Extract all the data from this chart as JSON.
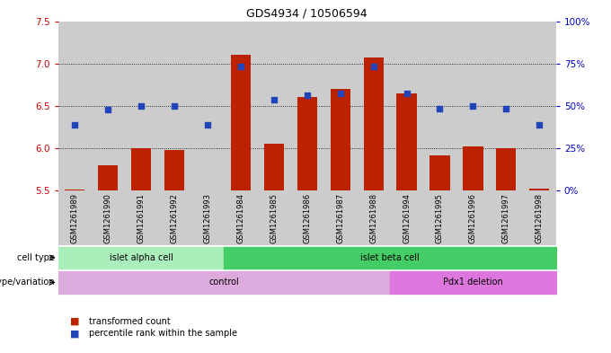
{
  "title": "GDS4934 / 10506594",
  "samples": [
    "GSM1261989",
    "GSM1261990",
    "GSM1261991",
    "GSM1261992",
    "GSM1261993",
    "GSM1261984",
    "GSM1261985",
    "GSM1261986",
    "GSM1261987",
    "GSM1261988",
    "GSM1261994",
    "GSM1261995",
    "GSM1261996",
    "GSM1261997",
    "GSM1261998"
  ],
  "red_values": [
    5.51,
    5.8,
    6.0,
    5.98,
    5.5,
    7.1,
    6.05,
    6.6,
    6.7,
    7.07,
    6.65,
    5.92,
    6.02,
    6.0,
    5.52
  ],
  "blue_values": [
    6.28,
    6.46,
    6.5,
    6.5,
    6.28,
    6.97,
    6.57,
    6.63,
    6.65,
    6.97,
    6.65,
    6.47,
    6.5,
    6.47,
    6.28
  ],
  "y_min": 5.5,
  "y_max": 7.5,
  "y_ticks": [
    5.5,
    6.0,
    6.5,
    7.0,
    7.5
  ],
  "right_y_ticks": [
    0,
    25,
    50,
    75,
    100
  ],
  "right_y_labels": [
    "0%",
    "25%",
    "50%",
    "75%",
    "100%"
  ],
  "bar_color": "#bb2200",
  "dot_color": "#2244bb",
  "bar_bottom": 5.5,
  "cell_type_groups": [
    {
      "label": "islet alpha cell",
      "start": 0,
      "end": 4,
      "color": "#aaeebb"
    },
    {
      "label": "islet beta cell",
      "start": 5,
      "end": 14,
      "color": "#44cc66"
    }
  ],
  "genotype_groups": [
    {
      "label": "control",
      "start": 0,
      "end": 9,
      "color": "#ddaadd"
    },
    {
      "label": "Pdx1 deletion",
      "start": 10,
      "end": 14,
      "color": "#dd77dd"
    }
  ],
  "legend_items": [
    {
      "label": "transformed count",
      "color": "#bb2200"
    },
    {
      "label": "percentile rank within the sample",
      "color": "#2244bb"
    }
  ],
  "tick_bg_color": "#cccccc",
  "plot_bg": "#ffffff",
  "left_axis_color": "#cc0000",
  "right_axis_color": "#0000cc"
}
